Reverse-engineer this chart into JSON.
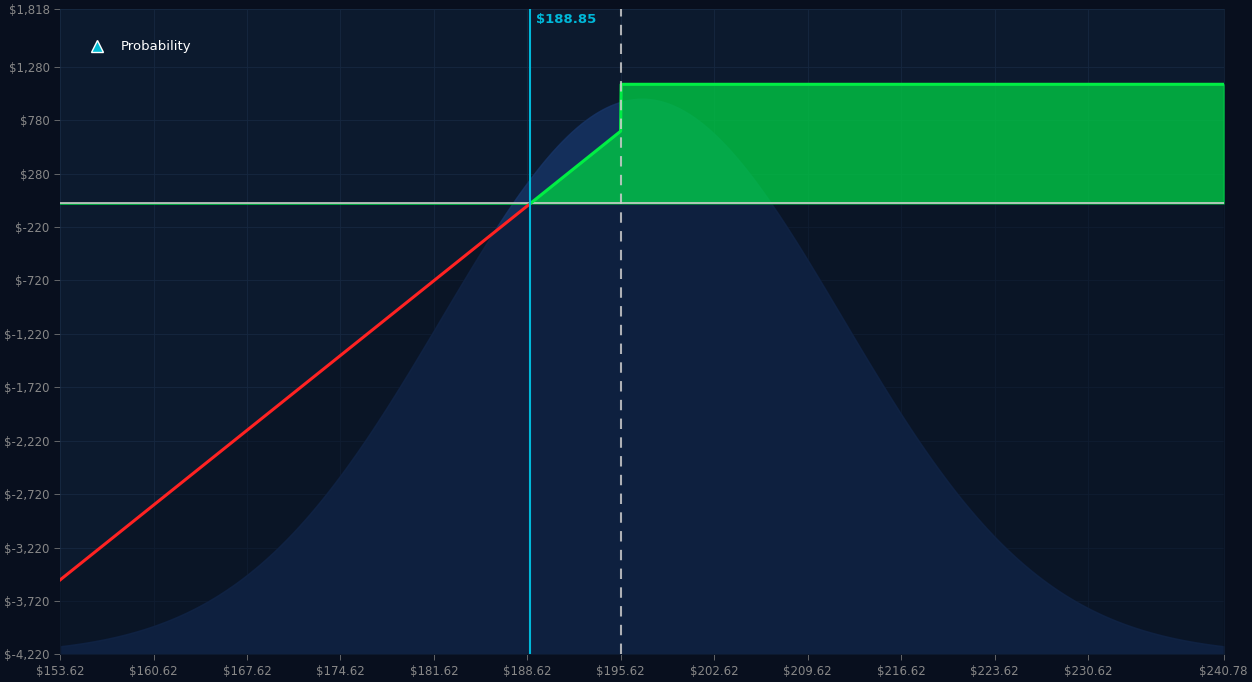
{
  "bg_color": "#080f1e",
  "plot_bg_color": "#0c1a2e",
  "grid_color": "#162840",
  "zero_line_color": "#cccccc",
  "cyan_line_color": "#00b8d9",
  "dashed_line_color": "#cccccc",
  "red_line_color": "#ff2222",
  "green_line_color": "#00ee44",
  "green_fill_color": "#00cc44",
  "x_min": 153.62,
  "x_max": 240.78,
  "y_min": -4220,
  "y_max": 1818,
  "x_ticks": [
    153.62,
    160.62,
    167.62,
    174.62,
    181.62,
    188.62,
    195.62,
    202.62,
    209.62,
    216.62,
    223.62,
    230.62,
    240.78
  ],
  "x_tick_labels": [
    "$153.62",
    "$160.62",
    "$167.62",
    "$174.62",
    "$181.62",
    "$188.62",
    "$195.62",
    "$202.62",
    "$209.62",
    "$216.62",
    "$223.62",
    "$230.62",
    "$240.78"
  ],
  "y_ticks": [
    -4220,
    -3720,
    -3220,
    -2720,
    -2220,
    -1720,
    -1220,
    -720,
    -220,
    280,
    780,
    1280,
    1818
  ],
  "y_tick_labels": [
    "$-4,220",
    "$-3,720",
    "$-3,220",
    "$-2,720",
    "$-2,220",
    "$-1,720",
    "$-1,220",
    "$-720",
    "$-220",
    "$280",
    "$780",
    "$1,280",
    "$1,818"
  ],
  "breakeven": 188.85,
  "strike": 195.62,
  "max_profit": 1115,
  "probability_mean": 197.2,
  "probability_std": 15.0,
  "prob_scale": 5200,
  "legend_label": "Probability",
  "legend_marker_color": "#00bcd4",
  "breakeven_label": "$188.85"
}
